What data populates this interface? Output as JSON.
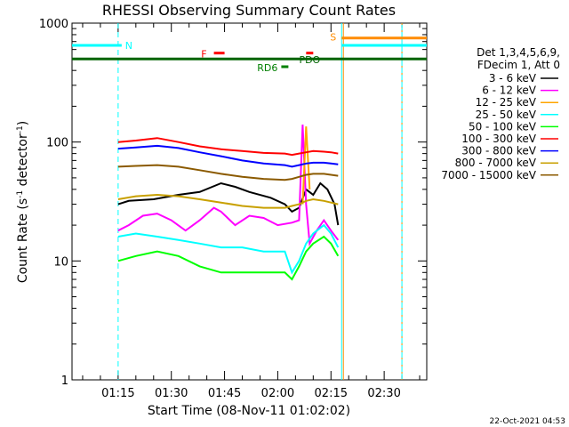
{
  "chart_data": {
    "type": "line",
    "title": "RHESSI Observing Summary Count Rates",
    "xlabel": "Start Time (08-Nov-11 01:02:02)",
    "ylabel_main": "Count Rate (s",
    "ylabel_sup1": "-1",
    "ylabel_mid": " detector",
    "ylabel_sup2": "-1",
    "ylabel_end": ")",
    "y_scale": "log",
    "ylim": [
      1,
      1000
    ],
    "xlim_min": [
      62,
      162
    ],
    "y_ticks": [
      {
        "value": 1,
        "label": "1"
      },
      {
        "value": 10,
        "label": "10"
      },
      {
        "value": 100,
        "label": "100"
      },
      {
        "value": 1000,
        "label": "1000"
      }
    ],
    "x_ticks": [
      {
        "value": 75,
        "label": "01:15"
      },
      {
        "value": 90,
        "label": "01:30"
      },
      {
        "value": 105,
        "label": "01:45"
      },
      {
        "value": 120,
        "label": "02:00"
      },
      {
        "value": 135,
        "label": "02:15"
      },
      {
        "value": 150,
        "label": "02:30"
      }
    ],
    "legend_header": [
      "Det 1,3,4,5,6,9,",
      "FDecim 1, Att 0"
    ],
    "legend_position": "right",
    "series": [
      {
        "name": "3 - 6 keV",
        "color": "#000000",
        "x": [
          75,
          78,
          85,
          92,
          98,
          104,
          108,
          112,
          118,
          122,
          124,
          126,
          128,
          130,
          132,
          134,
          136,
          137
        ],
        "y": [
          30,
          32,
          33,
          36,
          38,
          45,
          42,
          38,
          34,
          30,
          26,
          28,
          40,
          36,
          45,
          40,
          30,
          20
        ]
      },
      {
        "name": "6 - 12 keV",
        "color": "#ff00ff",
        "x": [
          75,
          78,
          82,
          86,
          90,
          94,
          98,
          102,
          104,
          108,
          112,
          116,
          120,
          124,
          126,
          127,
          128,
          129,
          131,
          133,
          135,
          137
        ],
        "y": [
          18,
          20,
          24,
          25,
          22,
          18,
          22,
          28,
          26,
          20,
          24,
          23,
          20,
          21,
          22,
          140,
          30,
          14,
          18,
          22,
          18,
          15
        ]
      },
      {
        "name": "12 - 25 keV",
        "color": "#ffa500",
        "x": [
          127,
          128,
          129
        ],
        "y": [
          30,
          135,
          40
        ]
      },
      {
        "name": "25 - 50 keV",
        "color": "#00ffff",
        "x": [
          75,
          80,
          86,
          92,
          98,
          104,
          110,
          116,
          122,
          124,
          126,
          128,
          130,
          133,
          135,
          137
        ],
        "y": [
          16,
          17,
          16,
          15,
          14,
          13,
          13,
          12,
          12,
          8,
          10,
          14,
          17,
          20,
          17,
          13
        ]
      },
      {
        "name": "50 - 100 keV",
        "color": "#00ff00",
        "x": [
          75,
          80,
          86,
          92,
          98,
          104,
          110,
          116,
          122,
          124,
          126,
          128,
          130,
          133,
          135,
          137
        ],
        "y": [
          10,
          11,
          12,
          11,
          9,
          8,
          8,
          8,
          8,
          7,
          9,
          12,
          14,
          16,
          14,
          11
        ]
      },
      {
        "name": "100 - 300 keV",
        "color": "#ff0000",
        "x": [
          75,
          80,
          86,
          92,
          98,
          104,
          110,
          116,
          122,
          124,
          126,
          128,
          130,
          133,
          135,
          137
        ],
        "y": [
          100,
          103,
          108,
          100,
          92,
          87,
          84,
          81,
          80,
          78,
          80,
          82,
          84,
          83,
          82,
          80
        ]
      },
      {
        "name": "300 - 800 keV",
        "color": "#0000ff",
        "x": [
          75,
          80,
          86,
          92,
          98,
          104,
          110,
          116,
          122,
          124,
          126,
          128,
          130,
          133,
          135,
          137
        ],
        "y": [
          88,
          90,
          93,
          89,
          82,
          76,
          70,
          66,
          64,
          62,
          64,
          66,
          67,
          67,
          66,
          65
        ]
      },
      {
        "name": "800 - 7000 keV",
        "color": "#c8a000",
        "x": [
          75,
          80,
          86,
          92,
          98,
          104,
          110,
          116,
          122,
          124,
          126,
          128,
          130,
          133,
          135,
          137
        ],
        "y": [
          33,
          35,
          36,
          35,
          33,
          31,
          29,
          28,
          28,
          29,
          30,
          32,
          33,
          32,
          31,
          30
        ]
      },
      {
        "name": "7000 - 15000 keV",
        "color": "#8b5a00",
        "x": [
          75,
          80,
          86,
          92,
          98,
          104,
          110,
          116,
          122,
          124,
          126,
          128,
          130,
          133,
          135,
          137
        ],
        "y": [
          62,
          63,
          64,
          62,
          58,
          54,
          51,
          49,
          48,
          49,
          51,
          53,
          54,
          54,
          53,
          52
        ]
      }
    ],
    "flags": [
      {
        "name": "N",
        "label": "N",
        "color": "#00ffff",
        "y": 650,
        "ranges": [
          [
            62,
            76
          ],
          [
            138,
            162
          ]
        ]
      },
      {
        "name": "S",
        "label": "S",
        "color": "#ff8c00",
        "y": 750,
        "ranges": [
          [
            138,
            162
          ]
        ]
      },
      {
        "name": "F",
        "label": "F",
        "color": "#ff0000",
        "y": 560,
        "ranges": [
          [
            102,
            105
          ],
          [
            128,
            130
          ]
        ]
      },
      {
        "name": "RD6",
        "label": "RD6",
        "color": "#008000",
        "y": 430,
        "ranges": [
          [
            121,
            123
          ]
        ]
      },
      {
        "name": "PDO",
        "label": "PDO",
        "color": "#006400",
        "y": 500,
        "ranges": [
          [
            62,
            162
          ]
        ]
      }
    ],
    "attenuator_ticks_minutes": [
      75,
      138,
      138.5,
      155
    ],
    "timestamp": "22-Oct-2021 04:53"
  }
}
